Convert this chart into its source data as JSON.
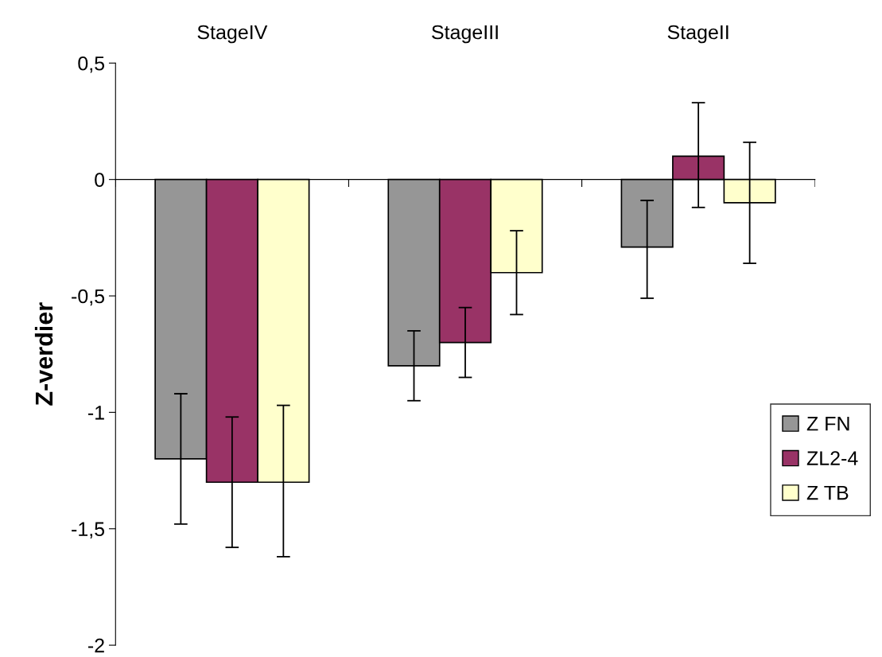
{
  "chart_data": {
    "type": "bar",
    "ylabel": "Z-verdier",
    "categories": [
      "StageIV",
      "StageIII",
      "StageII"
    ],
    "series": [
      {
        "name": "Z FN",
        "color": "#969696",
        "values": [
          -1.2,
          -0.8,
          -0.29
        ],
        "errors": [
          [
            -1.48,
            -0.92
          ],
          [
            -0.95,
            -0.65
          ],
          [
            -0.51,
            -0.09
          ]
        ]
      },
      {
        "name": "ZL2-4",
        "color": "#993366",
        "values": [
          -1.3,
          -0.7,
          0.1
        ],
        "errors": [
          [
            -1.58,
            -1.02
          ],
          [
            -0.85,
            -0.55
          ],
          [
            -0.12,
            0.33
          ]
        ]
      },
      {
        "name": "Z TB",
        "color": "#ffffcc",
        "values": [
          -1.3,
          -0.4,
          -0.1
        ],
        "errors": [
          [
            -1.62,
            -0.97
          ],
          [
            -0.58,
            -0.22
          ],
          [
            -0.36,
            0.16
          ]
        ]
      }
    ],
    "ylim": [
      -2,
      0.5
    ],
    "yticks": [
      {
        "value": -2,
        "label": "-2"
      },
      {
        "value": -1.5,
        "label": "-1,5"
      },
      {
        "value": -1,
        "label": "-1"
      },
      {
        "value": -0.5,
        "label": "-0,5"
      },
      {
        "value": 0,
        "label": "0"
      },
      {
        "value": 0.5,
        "label": "0,5"
      }
    ],
    "legend": "right"
  }
}
